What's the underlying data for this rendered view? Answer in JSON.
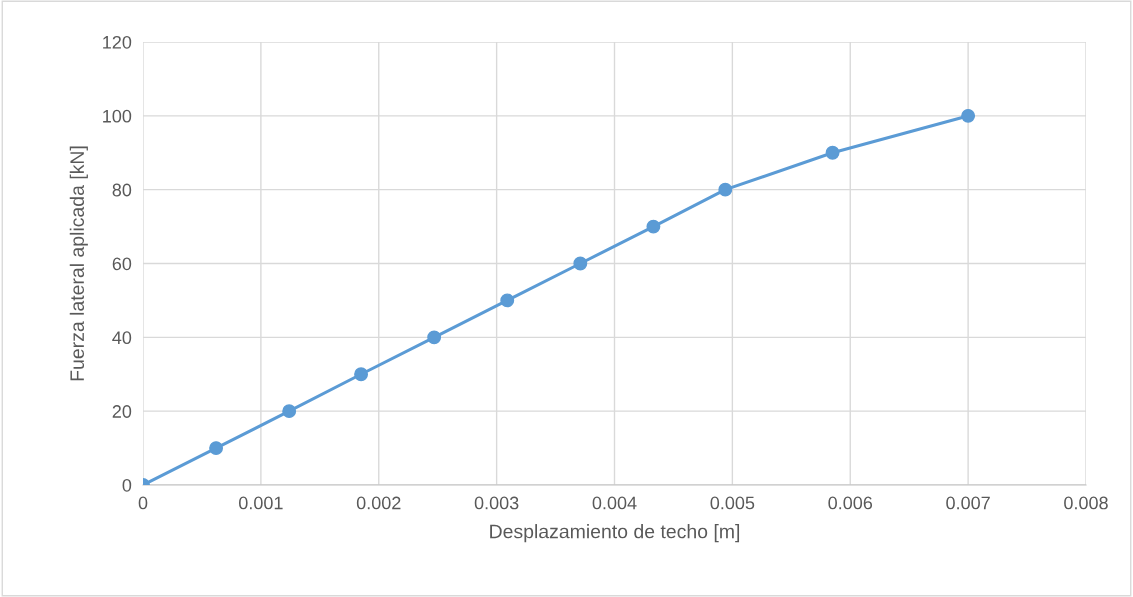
{
  "chart_data": {
    "type": "line",
    "xlabel": "Desplazamiento de techo [m]",
    "ylabel": "Fuerza lateral aplicada [kN]",
    "x": [
      0,
      0.00062,
      0.00124,
      0.00185,
      0.00247,
      0.00309,
      0.00371,
      0.00433,
      0.00494,
      0.00585,
      0.007
    ],
    "series": [
      {
        "color": "#5b9bd5",
        "values": [
          0,
          10,
          20,
          30,
          40,
          50,
          60,
          70,
          80,
          90,
          100
        ]
      }
    ],
    "xlim": [
      0,
      0.008
    ],
    "xticks": [
      0,
      0.001,
      0.002,
      0.003,
      0.004,
      0.005,
      0.006,
      0.007,
      0.008
    ],
    "ylim": [
      0,
      120
    ],
    "yticks": [
      0,
      20,
      40,
      60,
      80,
      100,
      120
    ],
    "grid": true,
    "marker": "circle",
    "line_style": "solid"
  }
}
